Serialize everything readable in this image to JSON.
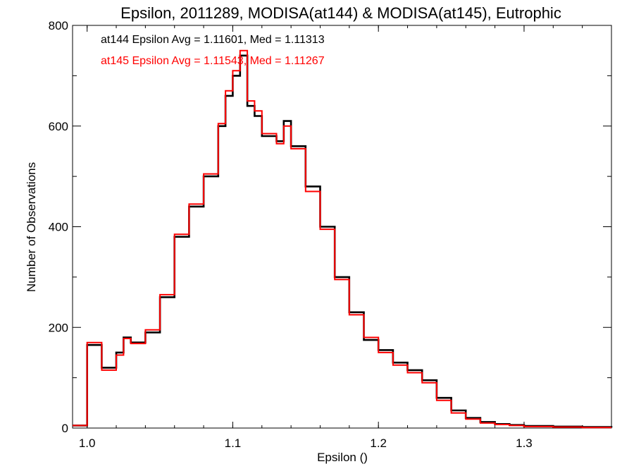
{
  "chart_data": {
    "type": "line",
    "title": "Epsilon, 2011289, MODISA(at144) & MODISA(at145), Eutrophic",
    "xlabel": "Epsilon ()",
    "ylabel": "Number of Observations",
    "xlim": [
      0.99,
      1.36
    ],
    "ylim": [
      0,
      800
    ],
    "x_ticks": [
      1.0,
      1.1,
      1.2,
      1.3
    ],
    "x_tick_labels": [
      "1.0",
      "1.1",
      "1.2",
      "1.3"
    ],
    "y_ticks": [
      0,
      200,
      400,
      600,
      800
    ],
    "y_tick_labels": [
      "0",
      "200",
      "400",
      "600",
      "800"
    ],
    "grid": false,
    "step": true,
    "annotations": [
      {
        "text": "at144 Epsilon Avg = 1.11601, Med = 1.11313",
        "color": "#000000"
      },
      {
        "text": "at145 Epsilon Avg = 1.11543, Med = 1.11267",
        "color": "#ff0000"
      }
    ],
    "x": [
      0.99,
      1.0,
      1.01,
      1.02,
      1.025,
      1.03,
      1.04,
      1.05,
      1.06,
      1.07,
      1.08,
      1.09,
      1.095,
      1.1,
      1.105,
      1.11,
      1.115,
      1.12,
      1.13,
      1.135,
      1.14,
      1.15,
      1.16,
      1.17,
      1.18,
      1.19,
      1.2,
      1.21,
      1.22,
      1.23,
      1.24,
      1.25,
      1.26,
      1.27,
      1.28,
      1.29,
      1.3,
      1.32,
      1.34,
      1.36
    ],
    "series": [
      {
        "color": "#000000",
        "values": [
          5,
          165,
          120,
          150,
          180,
          170,
          190,
          260,
          380,
          440,
          500,
          600,
          660,
          700,
          740,
          640,
          620,
          580,
          570,
          610,
          560,
          480,
          400,
          300,
          230,
          175,
          155,
          130,
          115,
          95,
          60,
          35,
          20,
          12,
          8,
          6,
          4,
          3,
          2,
          1
        ]
      },
      {
        "color": "#ff0000",
        "values": [
          5,
          170,
          115,
          145,
          178,
          168,
          195,
          265,
          385,
          445,
          505,
          605,
          670,
          710,
          750,
          650,
          630,
          585,
          565,
          600,
          555,
          470,
          395,
          295,
          225,
          180,
          150,
          125,
          110,
          90,
          55,
          30,
          18,
          10,
          7,
          5,
          3,
          2,
          1,
          1
        ]
      }
    ]
  }
}
